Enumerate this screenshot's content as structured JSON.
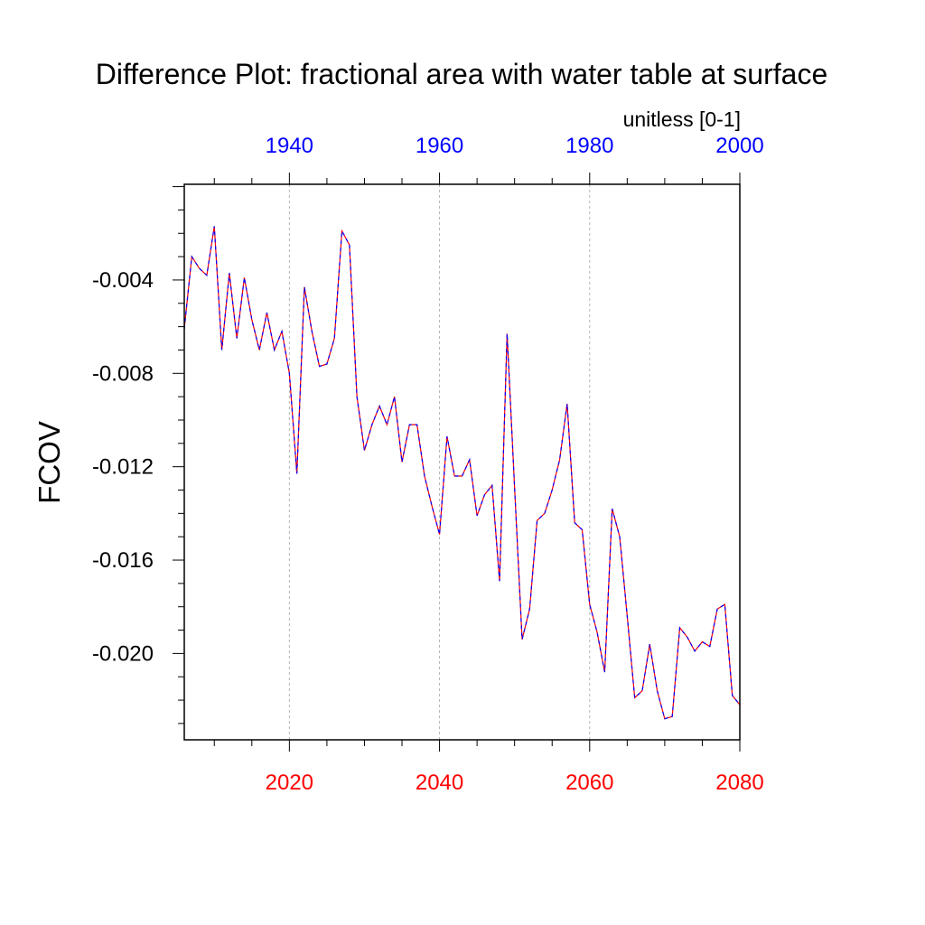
{
  "chart_data": {
    "type": "line",
    "title": "Difference Plot: fractional area with water table at surface",
    "units_label": "unitless [0-1]",
    "ylabel": "FCOV",
    "bottom_axis": {
      "range": [
        2006,
        2080
      ],
      "ticks": [
        2020,
        2040,
        2060,
        2080
      ],
      "tick_labels": [
        "2020",
        "2040",
        "2060",
        "2080"
      ],
      "color": "#ff0000"
    },
    "top_axis": {
      "range": [
        1926,
        2000
      ],
      "ticks": [
        1940,
        1960,
        1980,
        2000
      ],
      "tick_labels": [
        "1940",
        "1960",
        "1980",
        "2000"
      ],
      "color": "#0000ff"
    },
    "y_axis": {
      "range": [
        -0.0237,
        0.0001
      ],
      "ticks": [
        -0.004,
        -0.008,
        -0.012,
        -0.016,
        -0.02
      ],
      "tick_labels": [
        "-0.004",
        "-0.008",
        "-0.012",
        "-0.016",
        "-0.020"
      ]
    },
    "grid": "vertical dashed at major bottom ticks",
    "series": [
      {
        "name": "difference",
        "colors": [
          "#ff0000",
          "#0000ff"
        ],
        "x": [
          2006,
          2007,
          2008,
          2009,
          2010,
          2011,
          2012,
          2013,
          2014,
          2015,
          2016,
          2017,
          2018,
          2019,
          2020,
          2021,
          2022,
          2023,
          2024,
          2025,
          2026,
          2027,
          2028,
          2029,
          2030,
          2031,
          2032,
          2033,
          2034,
          2035,
          2036,
          2037,
          2038,
          2039,
          2040,
          2041,
          2042,
          2043,
          2044,
          2045,
          2046,
          2047,
          2048,
          2049,
          2050,
          2051,
          2052,
          2053,
          2054,
          2055,
          2056,
          2057,
          2058,
          2059,
          2060,
          2061,
          2062,
          2063,
          2064,
          2065,
          2066,
          2067,
          2068,
          2069,
          2070,
          2071,
          2072,
          2073,
          2074,
          2075,
          2076,
          2077,
          2078,
          2079,
          2080
        ],
        "values": [
          -0.0061,
          -0.003,
          -0.0035,
          -0.0038,
          -0.0017,
          -0.007,
          -0.0037,
          -0.0065,
          -0.0039,
          -0.0057,
          -0.007,
          -0.0054,
          -0.007,
          -0.0062,
          -0.008,
          -0.0123,
          -0.0043,
          -0.0062,
          -0.0077,
          -0.0076,
          -0.0065,
          -0.0019,
          -0.0025,
          -0.009,
          -0.0113,
          -0.0102,
          -0.0094,
          -0.0102,
          -0.009,
          -0.0118,
          -0.0102,
          -0.0102,
          -0.0124,
          -0.0137,
          -0.0149,
          -0.0107,
          -0.0124,
          -0.0124,
          -0.0117,
          -0.0141,
          -0.0132,
          -0.0128,
          -0.0169,
          -0.0063,
          -0.0129,
          -0.0194,
          -0.0181,
          -0.0143,
          -0.014,
          -0.013,
          -0.0117,
          -0.0093,
          -0.0144,
          -0.0147,
          -0.0179,
          -0.0191,
          -0.0208,
          -0.0138,
          -0.015,
          -0.0184,
          -0.0219,
          -0.0216,
          -0.0196,
          -0.0216,
          -0.0228,
          -0.0227,
          -0.0189,
          -0.0193,
          -0.0199,
          -0.0195,
          -0.0197,
          -0.0181,
          -0.0179,
          -0.0218,
          -0.0222
        ]
      }
    ]
  }
}
